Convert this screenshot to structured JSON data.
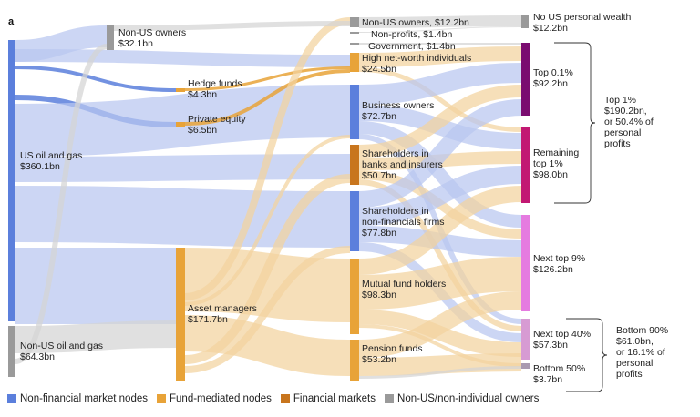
{
  "panel_label": "a",
  "colors": {
    "nonfin": "#5b7fdc",
    "nonfin_flow": "#b8c6f0",
    "fund": "#e8a338",
    "fund_flow": "#f3d29e",
    "financial": "#c8751d",
    "nonus": "#9a9a9a",
    "nonus_flow": "#d4d4d4",
    "top01": "#7a0c70",
    "remaining1": "#c21873",
    "next9": "#e57be0",
    "next40": "#d79bd3",
    "bottom50": "#a99ab0"
  },
  "nodes": [
    {
      "id": "us_oil",
      "lines": [
        "US oil and gas",
        "$360.1bn"
      ],
      "group": "nonfin"
    },
    {
      "id": "nonus_oil",
      "lines": [
        "Non-US oil and gas",
        "$64.3bn"
      ],
      "group": "nonus"
    },
    {
      "id": "nonus_owners_1",
      "lines": [
        "Non-US owners",
        "$32.1bn"
      ],
      "group": "nonus"
    },
    {
      "id": "hedge",
      "lines": [
        "Hedge funds",
        "$4.3bn"
      ],
      "group": "fund"
    },
    {
      "id": "pe",
      "lines": [
        "Private equity",
        "$6.5bn"
      ],
      "group": "fund"
    },
    {
      "id": "asset_mgr",
      "lines": [
        "Asset managers",
        "$171.7bn"
      ],
      "group": "fund"
    },
    {
      "id": "nonus_owners_2",
      "lines": [
        "Non-US owners, $12.2bn"
      ],
      "group": "nonus"
    },
    {
      "id": "nonprofits",
      "lines": [
        "Non-profits, $1.4bn"
      ],
      "group": "nonus"
    },
    {
      "id": "government",
      "lines": [
        "Government, $1.4bn"
      ],
      "group": "nonus"
    },
    {
      "id": "hnw",
      "lines": [
        "High net-worth individuals",
        "$24.5bn"
      ],
      "group": "fund"
    },
    {
      "id": "biz_owners",
      "lines": [
        "Business owners",
        "$72.7bn"
      ],
      "group": "nonfin"
    },
    {
      "id": "sh_banks",
      "lines": [
        "Shareholders in",
        "banks and insurers",
        "$50.7bn"
      ],
      "group": "financial"
    },
    {
      "id": "sh_nonfin",
      "lines": [
        "Shareholders in",
        "non-financials firms",
        "$77.8bn"
      ],
      "group": "nonfin"
    },
    {
      "id": "mutual",
      "lines": [
        "Mutual fund holders",
        "$98.3bn"
      ],
      "group": "fund"
    },
    {
      "id": "pension",
      "lines": [
        "Pension funds",
        "$53.2bn"
      ],
      "group": "fund"
    },
    {
      "id": "no_us_wealth",
      "lines": [
        "No US personal wealth",
        "$12.2bn"
      ],
      "group": "nonus"
    },
    {
      "id": "top01",
      "lines": [
        "Top 0.1%",
        "$92.2bn"
      ],
      "group": "top01"
    },
    {
      "id": "remaining1",
      "lines": [
        "Remaining",
        "top 1%",
        "$98.0bn"
      ],
      "group": "remaining1"
    },
    {
      "id": "next9",
      "lines": [
        "Next top 9%",
        "$126.2bn"
      ],
      "group": "next9"
    },
    {
      "id": "next40",
      "lines": [
        "Next top 40%",
        "$57.3bn"
      ],
      "group": "next40"
    },
    {
      "id": "bottom50",
      "lines": [
        "Bottom 50%",
        "$3.7bn"
      ],
      "group": "bottom50"
    }
  ],
  "brackets": [
    {
      "id": "top1",
      "lines": [
        "Top 1%",
        "$190.2bn,",
        "or 50.4% of",
        "personal",
        "profits"
      ]
    },
    {
      "id": "bottom90",
      "lines": [
        "Bottom 90%",
        "$61.0bn,",
        "or 16.1% of",
        "personal",
        "profits"
      ]
    }
  ],
  "legend": [
    {
      "label": "Non-financial market nodes",
      "group": "nonfin"
    },
    {
      "label": "Fund-mediated nodes",
      "group": "fund"
    },
    {
      "label": "Financial markets",
      "group": "financial"
    },
    {
      "label": "Non-US/non-individual owners",
      "group": "nonus"
    }
  ]
}
